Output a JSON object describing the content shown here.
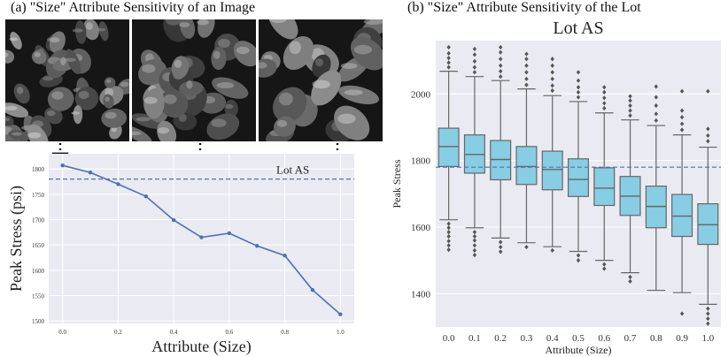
{
  "captions": {
    "left": "(a) \"Size\" Attribute Sensitivity of an Image",
    "right": "(b) \"Size\" Attribute Sensitivity of the Lot"
  },
  "images": [
    {
      "name": "micrograph-size-0"
    },
    {
      "name": "micrograph-size-0.5"
    },
    {
      "name": "micrograph-size-1.0"
    }
  ],
  "colors": {
    "line": "#4c72b0",
    "box_fill": "#87cde4",
    "box_stroke": "#666666",
    "plot_bg": "#eaeaf2",
    "grid": "#ffffff",
    "reference": "#4c72b0"
  },
  "chart_data": [
    {
      "type": "line",
      "title": "",
      "xlabel": "Attribute (Size)",
      "ylabel": "Peak Stress (psi)",
      "x": [
        0.0,
        0.1,
        0.2,
        0.3,
        0.4,
        0.5,
        0.6,
        0.7,
        0.8,
        0.9,
        1.0
      ],
      "y": [
        1807,
        1793,
        1770,
        1746,
        1699,
        1665,
        1673,
        1648,
        1629,
        1561,
        1513
      ],
      "xlim": [
        -0.05,
        1.05
      ],
      "ylim": [
        1495,
        1830
      ],
      "xticks": [
        "0.0",
        "0.2",
        "0.4",
        "0.6",
        "0.8",
        "1.0"
      ],
      "xtick_values": [
        0.0,
        0.2,
        0.4,
        0.6,
        0.8,
        1.0
      ],
      "yticks": [
        1500,
        1550,
        1600,
        1650,
        1700,
        1750,
        1800
      ],
      "reference_line": {
        "label": "Lot AS",
        "value": 1780
      },
      "grid": true
    },
    {
      "type": "box",
      "title": "Lot AS",
      "xlabel": "Attribute (Size)",
      "ylabel": "Peak Stress",
      "categories": [
        "0.0",
        "0.1",
        "0.2",
        "0.3",
        "0.4",
        "0.5",
        "0.6",
        "0.7",
        "0.8",
        "0.9",
        "1.0"
      ],
      "boxes": [
        {
          "q1": 1782,
          "median": 1842,
          "q3": 1897,
          "whisker_low": 1622,
          "whisker_high": 2068,
          "outliers": [
            1610,
            1598,
            1585,
            1572,
            1558,
            1545,
            1532,
            2080,
            2094,
            2108,
            2122,
            2140
          ]
        },
        {
          "q1": 1762,
          "median": 1818,
          "q3": 1877,
          "whisker_low": 1598,
          "whisker_high": 2052,
          "outliers": [
            1585,
            1572,
            1560,
            1545,
            1530,
            1516,
            2065,
            2080,
            2098,
            2118,
            2135
          ]
        },
        {
          "q1": 1742,
          "median": 1803,
          "q3": 1860,
          "whisker_low": 1567,
          "whisker_high": 2040,
          "outliers": [
            1555,
            1540,
            1526,
            2052,
            2068,
            2085,
            2105,
            2125,
            2140
          ]
        },
        {
          "q1": 1728,
          "median": 1782,
          "q3": 1842,
          "whisker_low": 1553,
          "whisker_high": 2015,
          "outliers": [
            1540,
            2027,
            2045,
            2065,
            2085,
            2105,
            2120
          ]
        },
        {
          "q1": 1712,
          "median": 1773,
          "q3": 1828,
          "whisker_low": 1541,
          "whisker_high": 1995,
          "outliers": [
            1530,
            2010,
            2025,
            2045,
            2065,
            2085,
            2105
          ]
        },
        {
          "q1": 1692,
          "median": 1743,
          "q3": 1805,
          "whisker_low": 1527,
          "whisker_high": 1977,
          "outliers": [
            1515,
            1500,
            1990,
            2005,
            2020,
            2040,
            2065
          ]
        },
        {
          "q1": 1665,
          "median": 1717,
          "q3": 1778,
          "whisker_low": 1500,
          "whisker_high": 1943,
          "outliers": [
            1488,
            1475,
            1957,
            1972,
            1988,
            2005,
            2020
          ]
        },
        {
          "q1": 1635,
          "median": 1693,
          "q3": 1752,
          "whisker_low": 1463,
          "whisker_high": 1922,
          "outliers": [
            1450,
            1437,
            1935,
            1950,
            1965,
            1980,
            1993
          ]
        },
        {
          "q1": 1598,
          "median": 1662,
          "q3": 1723,
          "whisker_low": 1410,
          "whisker_high": 1905,
          "outliers": [
            1920,
            1940,
            1965,
            1990,
            2022
          ]
        },
        {
          "q1": 1572,
          "median": 1633,
          "q3": 1698,
          "whisker_low": 1403,
          "whisker_high": 1877,
          "outliers": [
            1340,
            1892,
            1910,
            1930,
            1950,
            2008
          ]
        },
        {
          "q1": 1548,
          "median": 1607,
          "q3": 1670,
          "whisker_low": 1368,
          "whisker_high": 1840,
          "outliers": [
            1355,
            1340,
            1325,
            1310,
            1858,
            1875,
            1895,
            2008
          ]
        }
      ],
      "ylim": [
        1300,
        2160
      ],
      "yticks": [
        1400,
        1600,
        1800,
        2000
      ],
      "reference_line": {
        "value": 1780
      },
      "grid": true
    }
  ]
}
